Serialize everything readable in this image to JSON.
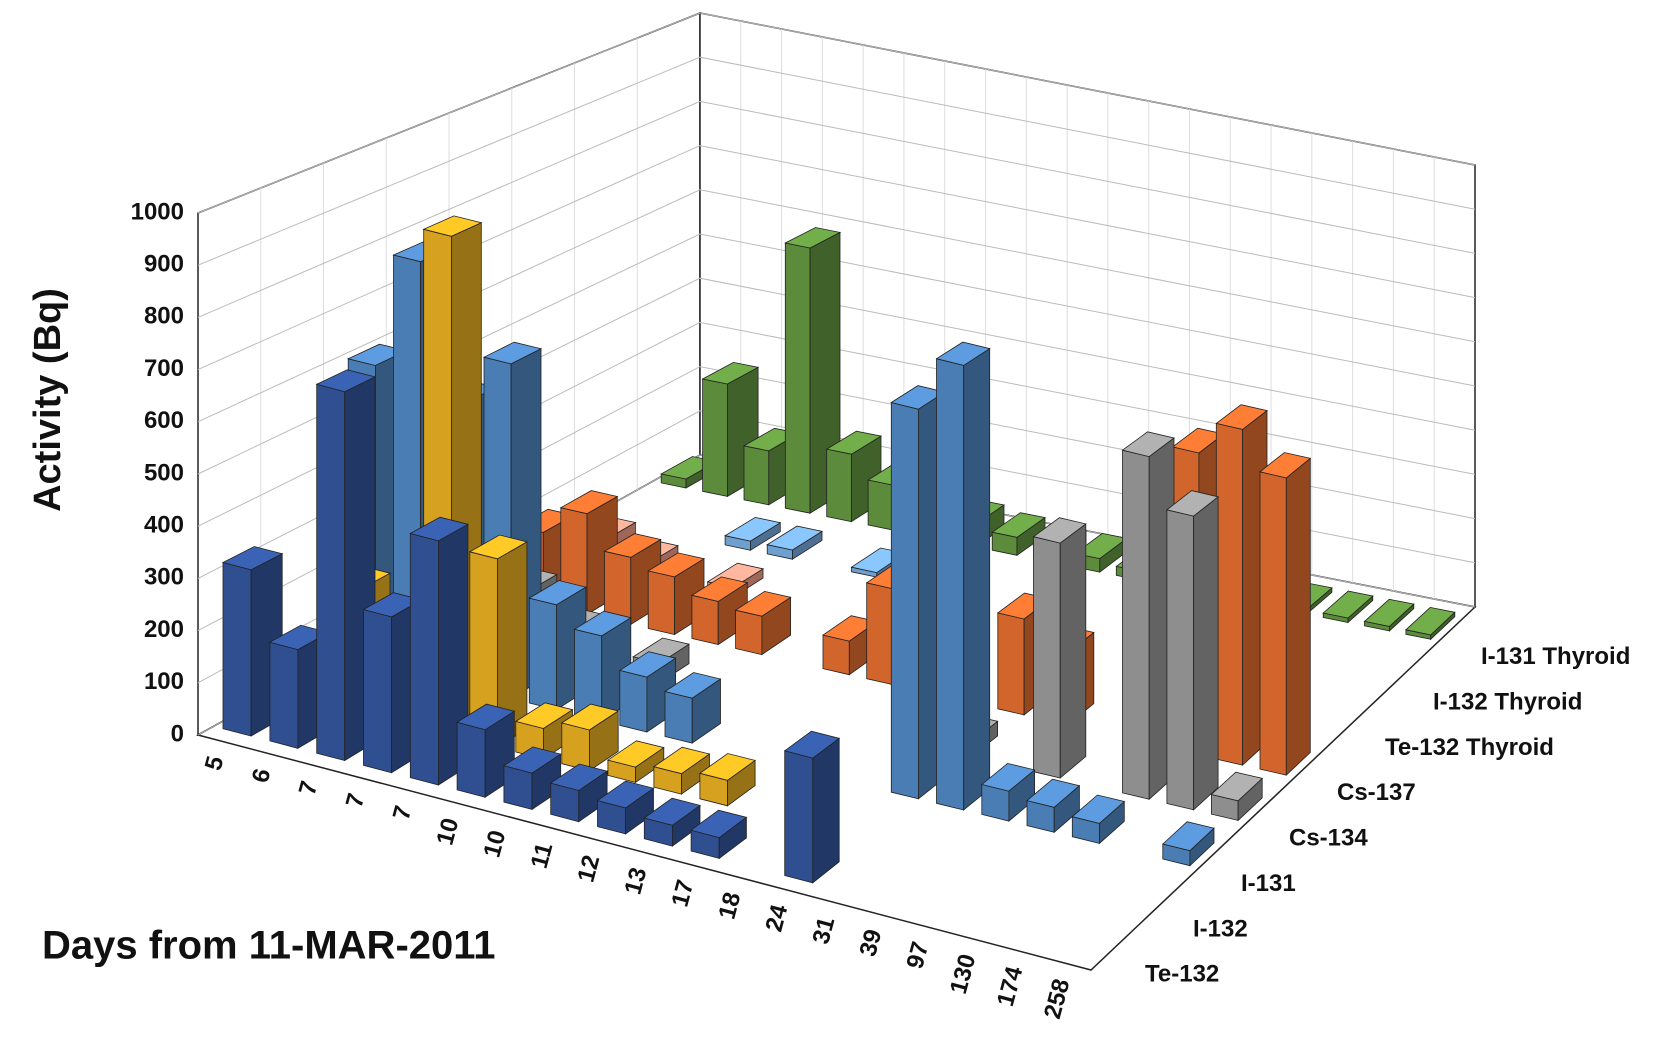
{
  "chart_data": {
    "type": "bar3d",
    "y_label": "Activity (Bq)",
    "x_label": "Days from 11-MAR-2011",
    "categories": [
      "5",
      "6",
      "7",
      "7",
      "7",
      "10",
      "10",
      "11",
      "12",
      "13",
      "17",
      "18",
      "24",
      "31",
      "39",
      "97",
      "130",
      "174",
      "258"
    ],
    "series": [
      {
        "name": "Te-132",
        "color": "#2f4f91",
        "values": [
          320,
          190,
          710,
          300,
          470,
          130,
          70,
          60,
          50,
          40,
          40,
          null,
          240,
          null,
          null,
          null,
          null,
          null,
          null
        ]
      },
      {
        "name": "I-132",
        "color": "#d6a11e",
        "values": [
          null,
          240,
          150,
          980,
          370,
          60,
          80,
          30,
          40,
          50,
          null,
          null,
          null,
          null,
          null,
          null,
          null,
          null,
          null
        ]
      },
      {
        "name": "I-131",
        "color": "#4a7db3",
        "values": [
          600,
          830,
          570,
          670,
          210,
          170,
          110,
          90,
          null,
          null,
          null,
          null,
          780,
          890,
          60,
          50,
          40,
          null,
          30
        ]
      },
      {
        "name": "Cs-134",
        "color": "#8e8e8e",
        "values": [
          40,
          null,
          120,
          60,
          null,
          40,
          null,
          null,
          null,
          null,
          null,
          null,
          30,
          null,
          480,
          null,
          700,
          600,
          40
        ]
      },
      {
        "name": "Cs-137",
        "color": "#d2652b",
        "values": [
          180,
          150,
          210,
          140,
          120,
          90,
          80,
          null,
          70,
          200,
          null,
          null,
          200,
          150,
          null,
          490,
          630,
          700,
          620
        ]
      },
      {
        "name": "Te-132  Thyroid",
        "color": "#e3937f",
        "values": [
          null,
          60,
          30,
          null,
          20,
          null,
          null,
          null,
          null,
          null,
          null,
          null,
          null,
          null,
          null,
          null,
          null,
          null,
          null
        ]
      },
      {
        "name": "I-132  Thyroid",
        "color": "#6f9fcf",
        "values": [
          null,
          null,
          null,
          20,
          20,
          null,
          10,
          null,
          null,
          null,
          null,
          null,
          null,
          null,
          null,
          null,
          null,
          null,
          null
        ]
      },
      {
        "name": "I-131  Thyroid",
        "color": "#5b8b3b",
        "values": [
          20,
          250,
          120,
          590,
          150,
          100,
          60,
          50,
          40,
          30,
          30,
          20,
          130,
          20,
          10,
          10,
          10,
          10,
          10
        ]
      }
    ],
    "ylim": [
      0,
      1000
    ],
    "yticks": [
      0,
      100,
      200,
      300,
      400,
      500,
      600,
      700,
      800,
      900,
      1000
    ],
    "grid": true
  }
}
